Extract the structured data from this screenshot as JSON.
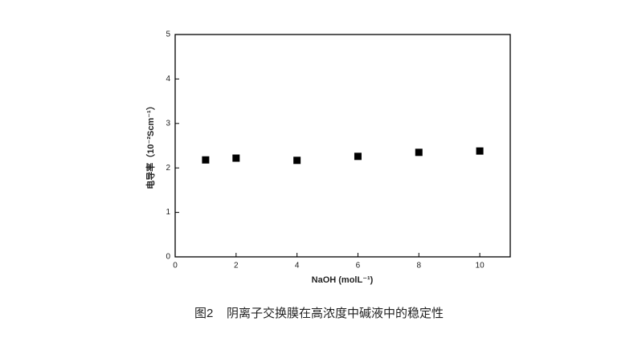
{
  "chart_data": {
    "type": "scatter",
    "x_label": "NaOH (molL⁻¹)",
    "y_label": "电导率（10⁻²Scm⁻¹）",
    "caption": "图2    阴离子交换膜在高浓度中碱液中的稳定性",
    "x": [
      1,
      2,
      4,
      6,
      8,
      10
    ],
    "values": [
      2.18,
      2.22,
      2.17,
      2.26,
      2.35,
      2.38
    ],
    "color": "#000000",
    "xlim": [
      0,
      11
    ],
    "xticks": [
      0,
      2,
      4,
      6,
      8,
      10
    ],
    "ylim": [
      0,
      5
    ],
    "yticks": [
      0,
      1,
      2,
      3,
      4,
      5
    ]
  }
}
